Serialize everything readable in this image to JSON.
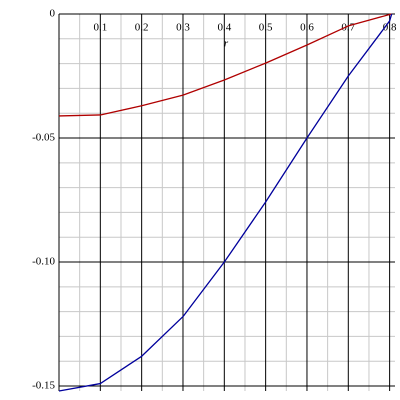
{
  "chart_data": {
    "type": "line",
    "x_label": "r",
    "x": [
      0,
      0.1,
      0.2,
      0.3,
      0.4,
      0.5,
      0.6,
      0.7,
      0.8,
      0.805
    ],
    "series": [
      {
        "color": "#b00000",
        "values": [
          -0.0411,
          -0.0407,
          -0.037,
          -0.0327,
          -0.0266,
          -0.0198,
          -0.0125,
          -0.0048,
          -0.0002,
          0
        ]
      },
      {
        "color": "#00009c",
        "values": [
          -0.152,
          -0.149,
          -0.138,
          -0.122,
          -0.1,
          -0.0758,
          -0.05,
          -0.025,
          -0.0028,
          0
        ]
      }
    ],
    "xlim": [
      0,
      0.813
    ],
    "ylim": [
      -0.152,
      0
    ],
    "xticks": [
      0.1,
      0.2,
      0.3,
      0.4,
      0.5,
      0.6,
      0.7,
      0.8
    ],
    "yticks": [
      0,
      -0.05,
      {
        "value": -0.1,
        "label": "-0.10"
      },
      -0.15
    ],
    "x_minor_ticks": [
      0.05,
      0.15,
      0.25,
      0.35,
      0.45,
      0.55,
      0.65,
      0.75
    ],
    "y_minor_ticks": [
      -0.01,
      -0.02,
      -0.03,
      -0.04,
      -0.06,
      -0.07,
      -0.08,
      -0.09,
      -0.11,
      -0.12,
      -0.13,
      -0.14
    ],
    "grid": true
  }
}
